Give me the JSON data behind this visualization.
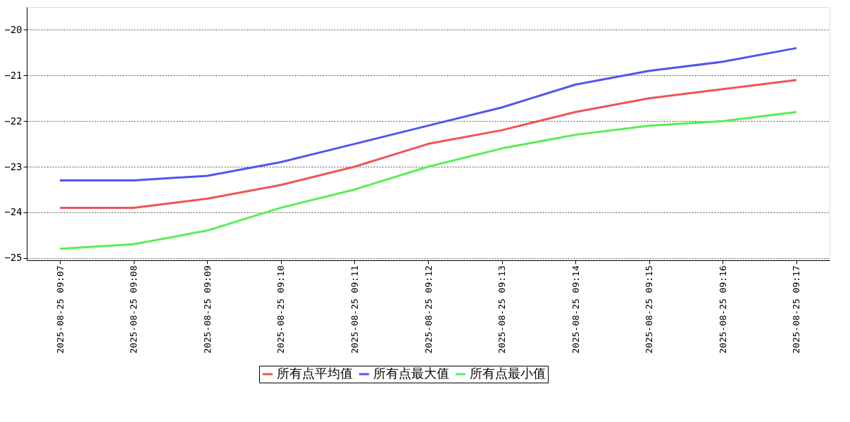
{
  "chart_data": {
    "type": "line",
    "categories": [
      "2025-08-25 09:07",
      "2025-08-25 09:08",
      "2025-08-25 09:09",
      "2025-08-25 09:10",
      "2025-08-25 09:11",
      "2025-08-25 09:12",
      "2025-08-25 09:13",
      "2025-08-25 09:14",
      "2025-08-25 09:15",
      "2025-08-25 09:16",
      "2025-08-25 09:17"
    ],
    "series": [
      {
        "name": "所有点平均值",
        "color": "#f05454",
        "values": [
          -23.9,
          -23.9,
          -23.7,
          -23.4,
          -23.0,
          -22.5,
          -22.2,
          -21.8,
          -21.5,
          -21.3,
          -21.1
        ]
      },
      {
        "name": "所有点最大值",
        "color": "#5454f0",
        "values": [
          -23.3,
          -23.3,
          -23.2,
          -22.9,
          -22.5,
          -22.1,
          -21.7,
          -21.2,
          -20.9,
          -20.7,
          -20.4
        ]
      },
      {
        "name": "所有点最小值",
        "color": "#54f054",
        "values": [
          -24.8,
          -24.7,
          -24.4,
          -23.9,
          -23.5,
          -23.0,
          -22.6,
          -22.3,
          -22.1,
          -22.0,
          -21.8
        ]
      }
    ],
    "ylim": [
      -25.05,
      -19.5
    ],
    "yticks": [
      -25,
      -24,
      -23,
      -22,
      -21,
      -20
    ],
    "grid": "y",
    "legend": "bottom",
    "marker": "none",
    "line_style": "solid"
  }
}
